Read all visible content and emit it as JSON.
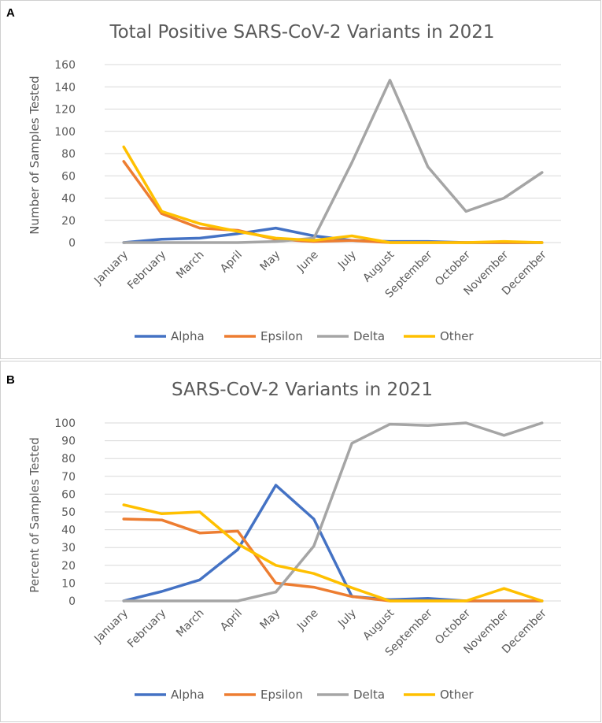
{
  "chart_data": [
    {
      "panel_label": "A",
      "type": "line",
      "title": "Total Positive SARS-CoV-2 Variants in 2021",
      "xlabel": "",
      "ylabel": "Number of Samples Tested",
      "ylim": [
        0,
        160
      ],
      "yticks": [
        "0",
        "20",
        "40",
        "60",
        "80",
        "100",
        "120",
        "140",
        "160"
      ],
      "grid": true,
      "legend_position": "bottom",
      "categories": [
        "January",
        "February",
        "March",
        "April",
        "May",
        "June",
        "July",
        "August",
        "September",
        "October",
        "November",
        "December"
      ],
      "series": [
        {
          "name": "Alpha",
          "color": "#4472C4",
          "values": [
            0,
            3,
            4,
            8,
            13,
            6,
            2,
            1,
            1,
            0,
            0,
            0
          ]
        },
        {
          "name": "Epsilon",
          "color": "#ED7D31",
          "values": [
            73,
            26,
            13,
            11,
            3,
            1,
            2,
            0,
            0,
            0,
            0,
            0
          ]
        },
        {
          "name": "Delta",
          "color": "#A5A5A5",
          "values": [
            0,
            0,
            0,
            0,
            1,
            4,
            72,
            146,
            68,
            28,
            40,
            63
          ]
        },
        {
          "name": "Other",
          "color": "#FFC000",
          "values": [
            86,
            28,
            17,
            10,
            4,
            2,
            6,
            0,
            0,
            0,
            1,
            0
          ]
        }
      ]
    },
    {
      "panel_label": "B",
      "type": "line",
      "title": "SARS-CoV-2 Variants in 2021",
      "xlabel": "",
      "ylabel": "Percent of Samples Tested",
      "ylim": [
        0,
        100
      ],
      "yticks": [
        "0",
        "10",
        "20",
        "30",
        "40",
        "50",
        "60",
        "70",
        "80",
        "90",
        "100"
      ],
      "grid": true,
      "legend_position": "bottom",
      "categories": [
        "January",
        "February",
        "March",
        "April",
        "May",
        "June",
        "July",
        "August",
        "September",
        "October",
        "November",
        "December"
      ],
      "series": [
        {
          "name": "Alpha",
          "color": "#4472C4",
          "values": [
            0,
            5.3,
            11.8,
            28.9,
            65,
            46,
            2.5,
            0.7,
            1.4,
            0,
            0,
            0
          ]
        },
        {
          "name": "Epsilon",
          "color": "#ED7D31",
          "values": [
            46,
            45.5,
            38.2,
            39.2,
            10,
            7.7,
            2.5,
            0,
            0,
            0,
            0,
            0
          ]
        },
        {
          "name": "Delta",
          "color": "#A5A5A5",
          "values": [
            0,
            0,
            0,
            0,
            5,
            30.8,
            88.6,
            99.3,
            98.6,
            100,
            93,
            100
          ]
        },
        {
          "name": "Other",
          "color": "#FFC000",
          "values": [
            54,
            49,
            50,
            32,
            20,
            15.4,
            7.4,
            0,
            0,
            0,
            7,
            0
          ]
        }
      ]
    }
  ]
}
